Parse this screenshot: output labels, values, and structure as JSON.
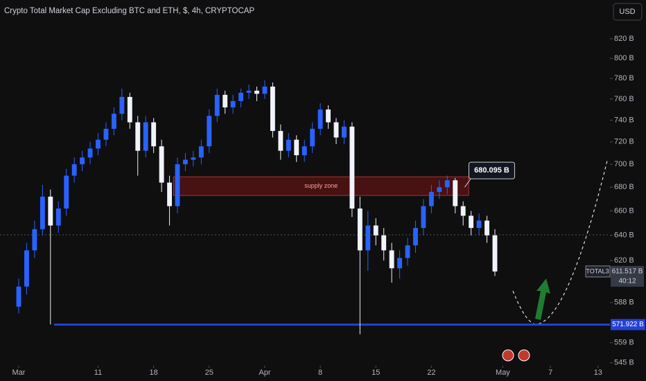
{
  "chart_data": {
    "type": "candlestick",
    "title": "Crypto Total Market Cap Excluding BTC and ETH, $, 4h, CRYPTOCAP",
    "currency_button": "USD",
    "log_scale": true,
    "up_color": "#2962ff",
    "down_color": "#f0f3fa",
    "x": [
      1,
      2,
      3,
      4,
      5,
      6,
      7,
      8,
      9,
      10,
      11,
      12,
      13,
      14,
      15,
      16,
      17,
      18,
      19,
      20,
      21,
      22,
      23,
      24,
      25,
      26,
      27,
      28,
      29,
      30,
      31,
      32,
      33,
      34,
      35,
      36,
      37,
      38,
      39,
      40,
      41,
      42,
      43,
      44,
      45,
      46,
      47,
      48,
      49,
      50,
      51,
      52,
      53,
      54,
      55,
      56,
      57,
      58,
      59,
      60,
      61
    ],
    "open": [
      585,
      600,
      628,
      645,
      672,
      648,
      662,
      690,
      700,
      706,
      714,
      722,
      732,
      746,
      762,
      738,
      712,
      738,
      716,
      684,
      664,
      700,
      704,
      706,
      716,
      744,
      764,
      752,
      758,
      766,
      768,
      765,
      772,
      730,
      712,
      722,
      708,
      716,
      732,
      750,
      738,
      724,
      734,
      662,
      628,
      648,
      640,
      628,
      614,
      622,
      632,
      646,
      664,
      676,
      680,
      686,
      664,
      656,
      646,
      652,
      640
    ],
    "high": [
      606,
      634,
      652,
      682,
      678,
      668,
      696,
      706,
      712,
      720,
      728,
      738,
      752,
      770,
      766,
      744,
      744,
      742,
      722,
      690,
      706,
      710,
      712,
      722,
      750,
      770,
      768,
      764,
      770,
      774,
      772,
      778,
      776,
      736,
      728,
      726,
      722,
      738,
      756,
      754,
      742,
      740,
      738,
      672,
      660,
      654,
      646,
      634,
      628,
      638,
      652,
      670,
      682,
      686,
      690,
      688,
      668,
      660,
      658,
      656,
      645
    ],
    "low": [
      580,
      594,
      622,
      640,
      572,
      642,
      656,
      684,
      694,
      700,
      708,
      716,
      726,
      740,
      732,
      690,
      706,
      710,
      676,
      648,
      658,
      694,
      698,
      700,
      710,
      738,
      746,
      746,
      752,
      760,
      758,
      760,
      724,
      704,
      706,
      702,
      702,
      710,
      726,
      732,
      718,
      718,
      655,
      565,
      612,
      632,
      620,
      603,
      606,
      616,
      626,
      640,
      658,
      670,
      674,
      658,
      648,
      640,
      640,
      634,
      608
    ],
    "close": [
      600,
      628,
      645,
      672,
      648,
      662,
      690,
      700,
      706,
      714,
      722,
      732,
      746,
      762,
      738,
      712,
      738,
      716,
      684,
      664,
      700,
      704,
      706,
      716,
      744,
      764,
      752,
      758,
      766,
      768,
      765,
      772,
      730,
      712,
      722,
      708,
      716,
      732,
      750,
      738,
      724,
      734,
      662,
      628,
      648,
      640,
      628,
      614,
      622,
      632,
      646,
      664,
      676,
      680,
      686,
      664,
      656,
      646,
      652,
      640,
      611.517
    ],
    "xlim": [
      -1.36,
      75.5
    ],
    "xticks": [
      {
        "value": 1,
        "label": "Mar"
      },
      {
        "value": 11,
        "label": "11"
      },
      {
        "value": 18,
        "label": "18"
      },
      {
        "value": 25,
        "label": "25"
      },
      {
        "value": 32,
        "label": "Apr"
      },
      {
        "value": 39,
        "label": "8"
      },
      {
        "value": 46,
        "label": "15"
      },
      {
        "value": 53,
        "label": "22"
      },
      {
        "value": 62,
        "label": "May"
      },
      {
        "value": 68,
        "label": "7"
      },
      {
        "value": 74,
        "label": "13"
      }
    ],
    "ylim": [
      543,
      861
    ],
    "yticks": [
      {
        "value": 820,
        "label": "820 B"
      },
      {
        "value": 800,
        "label": "800 B"
      },
      {
        "value": 780,
        "label": "780 B"
      },
      {
        "value": 760,
        "label": "760 B"
      },
      {
        "value": 740,
        "label": "740 B"
      },
      {
        "value": 720,
        "label": "720 B"
      },
      {
        "value": 700,
        "label": "700 B"
      },
      {
        "value": 680,
        "label": "680 B"
      },
      {
        "value": 660,
        "label": "660 B"
      },
      {
        "value": 640,
        "label": "640 B"
      },
      {
        "value": 620,
        "label": "620 B"
      },
      {
        "value": 588,
        "label": "588 B"
      },
      {
        "value": 559,
        "label": "559 B"
      },
      {
        "value": 545,
        "label": "545 B"
      }
    ],
    "zones": [
      {
        "label": "supply zone",
        "x": [
          20.5,
          57.7
        ],
        "y": [
          673,
          689
        ]
      }
    ],
    "callout": {
      "value": 680.095,
      "label": "680.095 B",
      "x": 57.2
    },
    "support_line": {
      "value": 571.922,
      "label": "571.922 B",
      "x_start": 5.45,
      "color": "#2442d6"
    },
    "price_label": {
      "symbol": "TOTAL3",
      "value": 611.517,
      "label": "611.517 B",
      "countdown": "40:12"
    }
  }
}
